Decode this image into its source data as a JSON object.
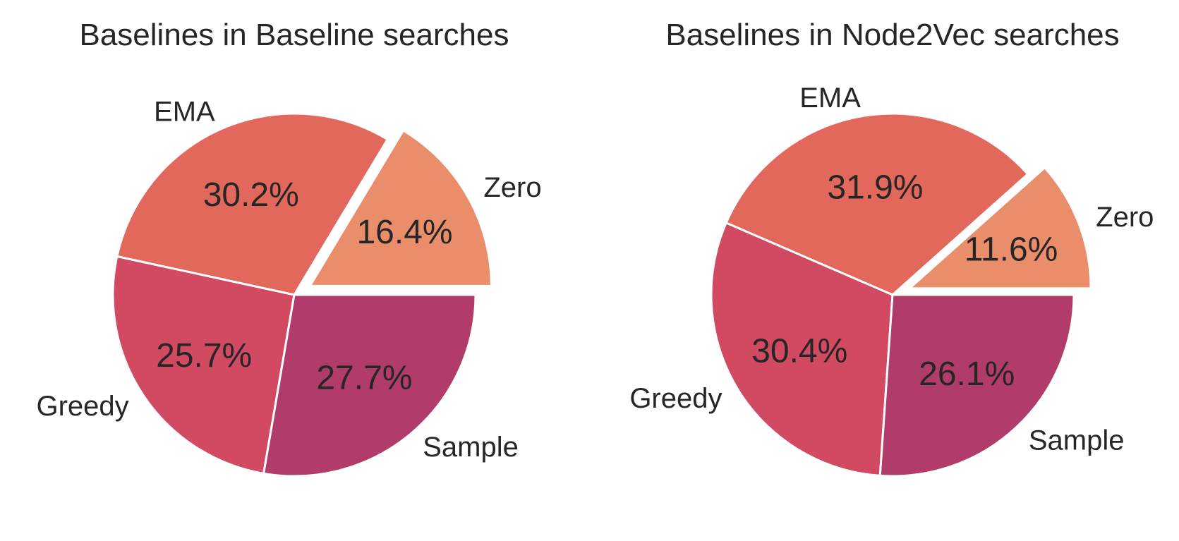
{
  "chart_data": [
    {
      "type": "pie",
      "title": "Baselines in Baseline searches",
      "slices": [
        {
          "label": "Zero",
          "value": 16.4,
          "display": "16.4%",
          "color": "#e98d6b",
          "exploded": true
        },
        {
          "label": "EMA",
          "value": 30.2,
          "display": "30.2%",
          "color": "#e3685c",
          "exploded": false
        },
        {
          "label": "Greedy",
          "value": 25.7,
          "display": "25.7%",
          "color": "#d14a61",
          "exploded": false
        },
        {
          "label": "Sample",
          "value": 27.7,
          "display": "27.7%",
          "color": "#b13c6c",
          "exploded": false
        }
      ],
      "start_angle_deg": 0,
      "direction": "counterclockwise"
    },
    {
      "type": "pie",
      "title": "Baselines in Node2Vec searches",
      "slices": [
        {
          "label": "Zero",
          "value": 11.6,
          "display": "11.6%",
          "color": "#e98d6b",
          "exploded": true
        },
        {
          "label": "EMA",
          "value": 31.9,
          "display": "31.9%",
          "color": "#e3685c",
          "exploded": false
        },
        {
          "label": "Greedy",
          "value": 30.4,
          "display": "30.4%",
          "color": "#d14a61",
          "exploded": false
        },
        {
          "label": "Sample",
          "value": 26.1,
          "display": "26.1%",
          "color": "#b13c6c",
          "exploded": false
        }
      ],
      "start_angle_deg": 0,
      "direction": "counterclockwise"
    }
  ]
}
